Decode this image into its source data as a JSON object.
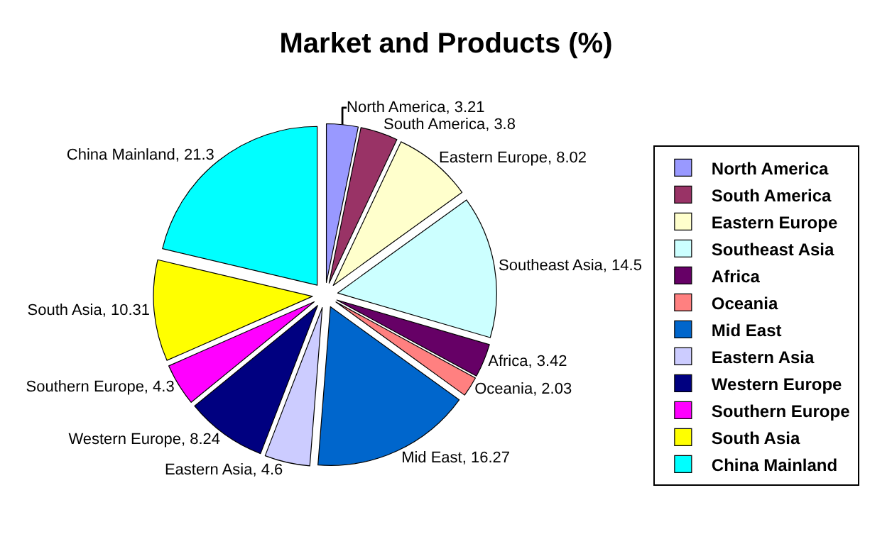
{
  "chart_data": {
    "type": "pie",
    "title": "Market and Products (%)",
    "categories": [
      "North America",
      "South America",
      "Eastern Europe",
      "Southeast Asia",
      "Africa",
      "Oceania",
      "Mid East",
      "Eastern Asia",
      "Western Europe",
      "Southern Europe",
      "South Asia",
      "China Mainland"
    ],
    "values": [
      3.21,
      3.8,
      8.02,
      14.5,
      3.42,
      2.03,
      16.27,
      4.6,
      8.24,
      4.3,
      10.31,
      21.3
    ],
    "colors": [
      "#9999ff",
      "#993366",
      "#ffffcc",
      "#ccffff",
      "#660066",
      "#ff8080",
      "#0066cc",
      "#ccccff",
      "#000080",
      "#ff00ff",
      "#ffff00",
      "#00ffff"
    ],
    "value_labels": [
      "North America, 3.21",
      "South America, 3.8",
      "Eastern Europe, 8.02",
      "Southeast Asia, 14.5",
      "Africa, 3.42",
      "Oceania, 2.03",
      "Mid East, 16.27",
      "Eastern Asia, 4.6",
      "Western Europe, 8.24",
      "Southern Europe, 4.3",
      "South Asia, 10.31",
      "China Mainland, 21.3"
    ],
    "legend": "right"
  }
}
